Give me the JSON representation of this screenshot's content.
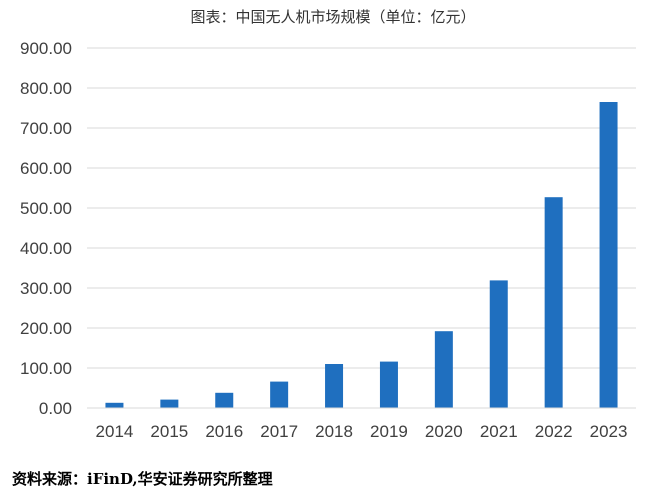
{
  "chart_data": {
    "type": "bar",
    "title": "图表：中国无人机市场规模（单位：亿元）",
    "categories": [
      "2014",
      "2015",
      "2016",
      "2017",
      "2018",
      "2019",
      "2020",
      "2021",
      "2022",
      "2023"
    ],
    "values": [
      13,
      21,
      38,
      66,
      110,
      116,
      192,
      319,
      527,
      765
    ],
    "ylim": [
      0,
      900
    ],
    "yticks": [
      "0.00",
      "100.00",
      "200.00",
      "300.00",
      "400.00",
      "500.00",
      "600.00",
      "700.00",
      "800.00",
      "900.00"
    ],
    "xlabel": "",
    "ylabel": "",
    "grid": true,
    "bar_color": "#1f6fbf"
  },
  "source": "资料来源：iFinD,华安证券研究所整理"
}
